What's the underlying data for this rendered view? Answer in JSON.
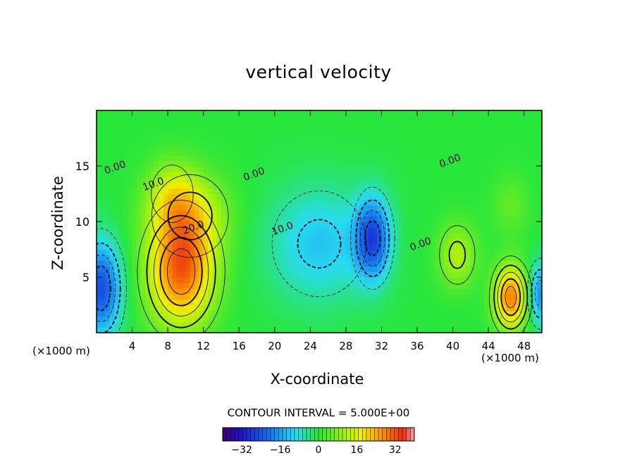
{
  "chart_data": {
    "type": "heatmap",
    "title": "vertical velocity",
    "xlabel": "X-coordinate",
    "ylabel": "Z-coordinate",
    "x_unit": "(×1000 m)",
    "x_unit_right": "(×1000 m)",
    "xlim": [
      0,
      50
    ],
    "ylim": [
      0,
      20
    ],
    "x_ticks": [
      4,
      8,
      12,
      16,
      20,
      24,
      28,
      32,
      36,
      40,
      44,
      48
    ],
    "y_ticks": [
      5,
      10,
      15
    ],
    "contour_interval_text": "CONTOUR INTERVAL = 5.000E+00",
    "contour_labels": [
      {
        "text": "0.00",
        "x": 2.2,
        "y": 14.6
      },
      {
        "text": "10.0",
        "x": 6.5,
        "y": 13.1
      },
      {
        "text": "20.0",
        "x": 11.0,
        "y": 9.2
      },
      {
        "text": "0.00",
        "x": 17.8,
        "y": 14.0
      },
      {
        "text": "10.0",
        "x": 21.0,
        "y": 9.1
      },
      {
        "text": "0.00",
        "x": 36.5,
        "y": 7.7
      },
      {
        "text": "0.00",
        "x": 39.8,
        "y": 15.2
      }
    ],
    "features": [
      {
        "x": 9.5,
        "z": 5.5,
        "value": 30,
        "sx": 2.6,
        "sz": 3.4
      },
      {
        "x": 10.5,
        "z": 10.5,
        "value": 14,
        "sx": 3.0,
        "sz": 2.6
      },
      {
        "x": 8.5,
        "z": 12.5,
        "value": 10,
        "sx": 2.0,
        "sz": 2.2
      },
      {
        "x": 0.5,
        "z": 4.0,
        "value": -25,
        "sx": 1.6,
        "sz": 3.0
      },
      {
        "x": 25.0,
        "z": 8.0,
        "value": -12,
        "sx": 4.0,
        "sz": 3.6
      },
      {
        "x": 31.0,
        "z": 8.5,
        "value": -24,
        "sx": 1.4,
        "sz": 2.6
      },
      {
        "x": 40.5,
        "z": 7.0,
        "value": 12,
        "sx": 1.5,
        "sz": 2.0
      },
      {
        "x": 46.5,
        "z": 3.2,
        "value": 28,
        "sx": 1.3,
        "sz": 2.0
      },
      {
        "x": 49.8,
        "z": 3.5,
        "value": -18,
        "sx": 0.9,
        "sz": 2.0
      },
      {
        "x": 46.5,
        "z": 11.5,
        "value": 5,
        "sx": 1.5,
        "sz": 2.0
      }
    ],
    "colorbar": {
      "range": [
        -40,
        40
      ],
      "ticks": [
        -32,
        -16,
        0,
        16,
        32
      ],
      "tick_labels": [
        "−32",
        "−16",
        "0",
        "16",
        "32"
      ]
    }
  }
}
